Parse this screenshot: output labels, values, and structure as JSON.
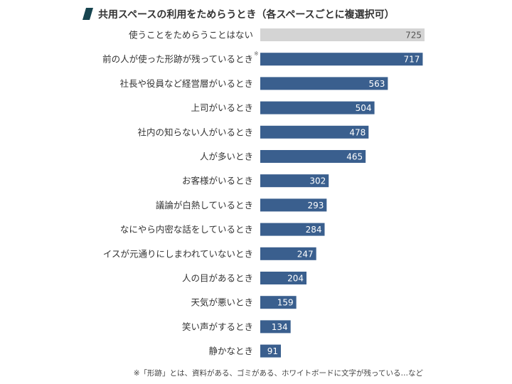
{
  "chart_data": {
    "type": "bar",
    "orientation": "horizontal",
    "title": "共用スペースの利用をためらうとき（各スペースごとに複選択可）",
    "categories": [
      "使うことをためらうことはない",
      "前の人が使った形跡が残っているとき",
      "社長や役員など経営層がいるとき",
      "上司がいるとき",
      "社内の知らない人がいるとき",
      "人が多いとき",
      "お客様がいるとき",
      "議論が白熱しているとき",
      "なにやら内密な話をしているとき",
      "イスが元通りにしまわれていないとき",
      "人の目があるとき",
      "天気が悪いとき",
      "笑い声がするとき",
      "静かなとき"
    ],
    "values": [
      725,
      717,
      563,
      504,
      478,
      465,
      302,
      293,
      284,
      247,
      204,
      159,
      134,
      91
    ],
    "annotation_mark": "※",
    "annotation_index": 1,
    "footnote": "※「形跡」とは、資料がある、ゴミがある、ホワイトボードに文字が残っている…など",
    "colors": {
      "highlight_bar": "#d4d4d4",
      "bar": "#3a5f8e",
      "title_accent": "#17444f",
      "highlight_label": "#555555",
      "label": "#ffffff"
    },
    "highlight_index": 0,
    "xlim": [
      0,
      780
    ],
    "grid": false,
    "legend": "none"
  }
}
